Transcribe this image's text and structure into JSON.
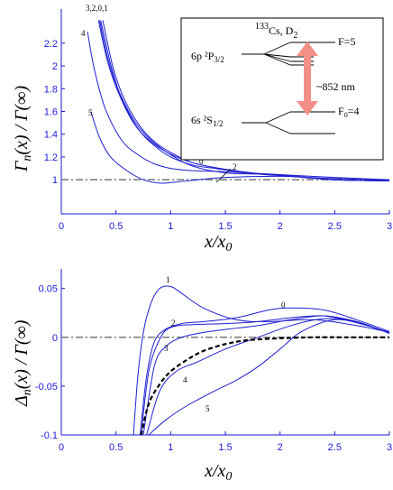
{
  "chart_data": [
    {
      "type": "line",
      "ylabel_parts": [
        "Γ",
        "n",
        "(x) / Γ(∞)"
      ],
      "xlabel_parts": [
        "x/x",
        "0"
      ],
      "xlim": [
        0,
        3
      ],
      "ylim": [
        0.7,
        2.5
      ],
      "xticks": [
        "0",
        "0.5",
        "1",
        "1.5",
        "2",
        "2.5",
        "3"
      ],
      "yticks": [
        "1",
        "1.2",
        "1.4",
        "1.6",
        "1.8",
        "2",
        "2.2"
      ],
      "reference_line": 1,
      "series_labels": [
        "3,2,0,1",
        "4",
        "5",
        "0",
        "2"
      ],
      "series": [
        {
          "label": "0",
          "x": [
            0.36,
            0.45,
            0.55,
            0.7,
            0.85,
            1.0,
            1.2,
            1.4,
            1.7,
            2.0,
            2.5,
            3.0
          ],
          "y": [
            2.4,
            2.02,
            1.72,
            1.45,
            1.3,
            1.2,
            1.13,
            1.1,
            1.06,
            1.04,
            1.0,
            0.99
          ]
        },
        {
          "label": "1",
          "x": [
            0.38,
            0.47,
            0.57,
            0.72,
            0.87,
            1.02,
            1.2,
            1.45,
            1.75,
            2.05,
            2.5,
            3.0
          ],
          "y": [
            2.4,
            2.0,
            1.72,
            1.47,
            1.32,
            1.23,
            1.15,
            1.1,
            1.06,
            1.04,
            1.0,
            0.99
          ]
        },
        {
          "label": "2",
          "x": [
            0.35,
            0.43,
            0.53,
            0.68,
            0.83,
            1.0,
            1.2,
            1.5,
            1.8,
            2.1,
            2.5,
            3.0
          ],
          "y": [
            2.4,
            2.05,
            1.77,
            1.5,
            1.34,
            1.22,
            1.12,
            1.06,
            1.05,
            1.03,
            1.0,
            0.99
          ]
        },
        {
          "label": "3",
          "x": [
            0.34,
            0.42,
            0.52,
            0.66,
            0.8,
            0.97,
            1.2,
            1.5,
            1.8,
            2.1,
            2.5,
            3.0
          ],
          "y": [
            2.4,
            2.05,
            1.77,
            1.5,
            1.35,
            1.24,
            1.15,
            1.09,
            1.05,
            1.03,
            1.0,
            0.99
          ]
        },
        {
          "label": "4",
          "x": [
            0.24,
            0.3,
            0.4,
            0.55,
            0.7,
            0.85,
            1.0,
            1.2,
            1.5,
            1.9,
            2.5,
            3.0
          ],
          "y": [
            2.3,
            1.98,
            1.63,
            1.35,
            1.22,
            1.14,
            1.1,
            1.08,
            1.07,
            1.05,
            1.02,
            1.0
          ]
        },
        {
          "label": "5",
          "x": [
            0.27,
            0.35,
            0.45,
            0.6,
            0.75,
            0.9,
            1.05,
            1.25,
            1.5,
            2.0,
            2.5,
            3.0
          ],
          "y": [
            1.6,
            1.37,
            1.2,
            1.08,
            1.0,
            0.97,
            0.98,
            1.0,
            1.02,
            1.03,
            1.01,
            1.0
          ]
        }
      ],
      "inset": {
        "title_sup": "133",
        "title_main": "Cs, D",
        "title_sub": "2",
        "upper_level": "6p ²P",
        "upper_sub": "3/2",
        "lower_level": "6s ²S",
        "lower_sub": "1/2",
        "f_upper": "F=5",
        "f_lower": "F",
        "f_lower_sub": "0",
        "f_lower_val": "=4",
        "wavelength": "~852 nm"
      }
    },
    {
      "type": "line",
      "ylabel_parts": [
        "Δ",
        "n",
        "(x) / Γ(∞)"
      ],
      "xlabel_parts": [
        "x/x",
        "0"
      ],
      "xlim": [
        0,
        3
      ],
      "ylim": [
        -0.1,
        0.07
      ],
      "xticks": [
        "0",
        "0.5",
        "1",
        "1.5",
        "2",
        "2.5",
        "3"
      ],
      "yticks": [
        "0.05",
        "0",
        "-0.05",
        "-0.1"
      ],
      "reference_line": 0,
      "series_labels": [
        "1",
        "0",
        "2",
        "3",
        "4",
        "5"
      ],
      "series": [
        {
          "label": "0",
          "x": [
            0.72,
            0.78,
            0.85,
            0.95,
            1.1,
            1.3,
            1.6,
            1.9,
            2.1,
            2.4,
            2.7,
            3.0
          ],
          "y": [
            -0.1,
            -0.04,
            -0.005,
            0.008,
            0.014,
            0.016,
            0.02,
            0.028,
            0.03,
            0.028,
            0.018,
            0.006
          ]
        },
        {
          "label": "1",
          "x": [
            0.66,
            0.7,
            0.75,
            0.82,
            0.9,
            1.0,
            1.1,
            1.3,
            1.6,
            1.9,
            2.3,
            2.7,
            3.0
          ],
          "y": [
            -0.1,
            -0.04,
            0.005,
            0.035,
            0.05,
            0.052,
            0.045,
            0.03,
            0.018,
            0.016,
            0.018,
            0.012,
            0.005
          ]
        },
        {
          "label": "2",
          "x": [
            0.73,
            0.8,
            0.9,
            1.0,
            1.2,
            1.5,
            1.8,
            2.1,
            2.4,
            2.7,
            3.0
          ],
          "y": [
            -0.1,
            -0.035,
            -0.002,
            0.01,
            0.013,
            0.014,
            0.016,
            0.02,
            0.022,
            0.015,
            0.005
          ]
        },
        {
          "label": "3",
          "x": [
            0.75,
            0.85,
            0.95,
            1.1,
            1.3,
            1.5,
            1.8,
            2.1,
            2.4,
            2.7,
            3.0
          ],
          "y": [
            -0.1,
            -0.03,
            -0.01,
            0.0,
            0.005,
            0.008,
            0.012,
            0.018,
            0.022,
            0.016,
            0.004
          ]
        },
        {
          "label": "4",
          "x": [
            0.78,
            0.9,
            1.05,
            1.25,
            1.5,
            1.8,
            2.1,
            2.4,
            2.7,
            3.0
          ],
          "y": [
            -0.1,
            -0.055,
            -0.035,
            -0.025,
            -0.012,
            0.0,
            0.012,
            0.019,
            0.016,
            0.004
          ]
        },
        {
          "label": "5",
          "x": [
            0.8,
            0.95,
            1.15,
            1.4,
            1.6,
            1.8,
            2.0,
            2.2,
            2.5,
            2.8,
            3.0
          ],
          "y": [
            -0.1,
            -0.085,
            -0.07,
            -0.055,
            -0.044,
            -0.03,
            -0.012,
            0.006,
            0.018,
            0.012,
            0.004
          ]
        },
        {
          "label": "dashed",
          "style": "dashed",
          "x": [
            0.73,
            0.8,
            0.9,
            1.0,
            1.15,
            1.3,
            1.5,
            1.7,
            2.0,
            2.3,
            2.6,
            3.0
          ],
          "y": [
            -0.1,
            -0.068,
            -0.048,
            -0.035,
            -0.023,
            -0.014,
            -0.007,
            -0.003,
            -0.001,
            0.0,
            0.0,
            0.0
          ]
        }
      ]
    }
  ]
}
